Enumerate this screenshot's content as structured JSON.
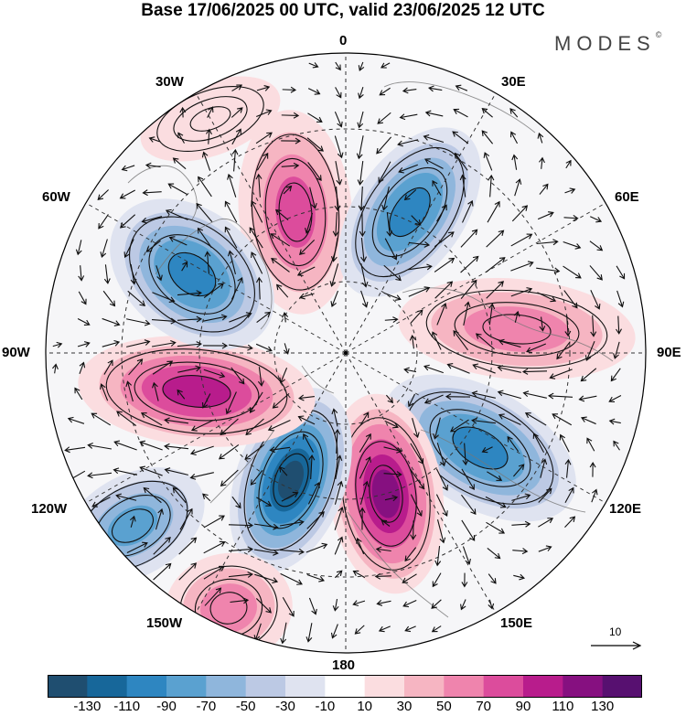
{
  "title": "Base 17/06/2025 00 UTC, valid 23/06/2025 12 UTC",
  "brand": "MODES",
  "brand_mark": "©",
  "longitude_labels": {
    "lon_0": "0",
    "lon_30e": "30E",
    "lon_60e": "60E",
    "lon_90e": "90E",
    "lon_120e": "120E",
    "lon_150e": "150E",
    "lon_180": "180",
    "lon_150w": "150W",
    "lon_120w": "120W",
    "lon_90w": "90W",
    "lon_60w": "60W",
    "lon_30w": "30W"
  },
  "colorbar": {
    "ticks": [
      "-130",
      "-110",
      "-90",
      "-70",
      "-50",
      "-30",
      "-10",
      "10",
      "30",
      "50",
      "70",
      "90",
      "110",
      "130"
    ],
    "colors": [
      "#1f4e70",
      "#17679a",
      "#2e86c1",
      "#5aa1d0",
      "#8fb6dc",
      "#bcc9e4",
      "#dfe3f0",
      "#ffffff",
      "#fbdde0",
      "#f6b5c2",
      "#ef84ad",
      "#dc4c9c",
      "#b81c8c",
      "#861080",
      "#571070"
    ]
  },
  "vector_scale": {
    "label": "10"
  },
  "anomaly_centers": [
    {
      "id": "pos-0-north",
      "sign": "positive",
      "peak_class": "90"
    },
    {
      "id": "neg-45e",
      "sign": "negative",
      "peak_class": "-90"
    },
    {
      "id": "pos-90e",
      "sign": "positive",
      "peak_class": "70"
    },
    {
      "id": "neg-120e",
      "sign": "negative",
      "peak_class": "-90"
    },
    {
      "id": "pos-170e",
      "sign": "positive",
      "peak_class": "130"
    },
    {
      "id": "neg-150w",
      "sign": "negative",
      "peak_class": "-130"
    },
    {
      "id": "pos-100w",
      "sign": "positive",
      "peak_class": "110"
    },
    {
      "id": "neg-60w",
      "sign": "negative",
      "peak_class": "-90"
    },
    {
      "id": "neg-outer-120w",
      "sign": "negative",
      "peak_class": "-70"
    },
    {
      "id": "pos-outer-150w",
      "sign": "positive",
      "peak_class": "70"
    },
    {
      "id": "pos-outer-20w",
      "sign": "positive",
      "peak_class": "30"
    }
  ]
}
